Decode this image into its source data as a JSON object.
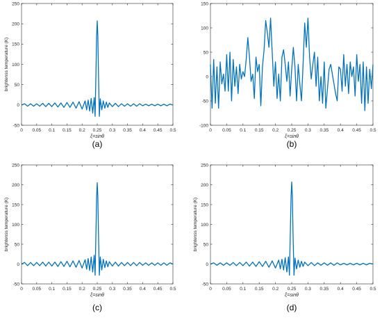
{
  "chart_data": [
    {
      "id": "a",
      "type": "line",
      "caption": "(a)",
      "xlabel": "ξ=sinθ",
      "ylabel": "brightenss temperature (K)",
      "xlim": [
        0,
        0.5
      ],
      "ylim": [
        -50,
        250
      ],
      "xticks": [
        0,
        0.05,
        0.1,
        0.15,
        0.2,
        0.25,
        0.3,
        0.35,
        0.4,
        0.45,
        0.5
      ],
      "xtick_labels": [
        "0",
        "0.05",
        "0.1",
        "0.15",
        "0.2",
        "0.25",
        "0.3",
        "0.35",
        "0.4",
        "0.45",
        "0.5"
      ],
      "yticks": [
        -50,
        0,
        50,
        100,
        150,
        200,
        250
      ],
      "ytick_labels": [
        "-50",
        "0",
        "50",
        "100",
        "150",
        "200",
        "250"
      ],
      "series": [
        {
          "color": "#0072BD",
          "x": [
            0,
            0.01,
            0.02,
            0.03,
            0.04,
            0.05,
            0.06,
            0.07,
            0.08,
            0.09,
            0.1,
            0.11,
            0.12,
            0.13,
            0.14,
            0.15,
            0.16,
            0.17,
            0.18,
            0.19,
            0.2,
            0.21,
            0.215,
            0.22,
            0.225,
            0.23,
            0.235,
            0.24,
            0.243,
            0.246,
            0.248,
            0.25,
            0.252,
            0.254,
            0.257,
            0.26,
            0.265,
            0.27,
            0.275,
            0.28,
            0.285,
            0.29,
            0.3,
            0.31,
            0.32,
            0.33,
            0.34,
            0.35,
            0.36,
            0.37,
            0.38,
            0.39,
            0.4,
            0.41,
            0.42,
            0.43,
            0.44,
            0.45,
            0.46,
            0.47,
            0.48,
            0.49,
            0.5
          ],
          "y": [
            0,
            3,
            -3,
            3,
            -3,
            3,
            -3,
            4,
            -4,
            4,
            -4,
            5,
            -5,
            5,
            -6,
            6,
            -6,
            7,
            -8,
            8,
            -10,
            10,
            -12,
            12,
            -15,
            16,
            -20,
            18,
            -28,
            90,
            170,
            207,
            170,
            80,
            -28,
            15,
            -12,
            10,
            -8,
            7,
            -6,
            5,
            -4,
            4,
            -4,
            3,
            -3,
            3,
            -3,
            3,
            -3,
            3,
            -2,
            2,
            -2,
            2,
            -2,
            2,
            -2,
            2,
            -2,
            2,
            0
          ]
        }
      ]
    },
    {
      "id": "b",
      "type": "line",
      "caption": "(b)",
      "xlabel": "ξ=sinθ",
      "ylabel": "",
      "xlim": [
        0,
        0.5
      ],
      "ylim": [
        -100,
        150
      ],
      "xticks": [
        0,
        0.05,
        0.1,
        0.15,
        0.2,
        0.25,
        0.3,
        0.35,
        0.4,
        0.45,
        0.5
      ],
      "xtick_labels": [
        "0",
        "0.05",
        "0.1",
        "0.15",
        "0.2",
        "0.25",
        "0.3",
        "0.35",
        "0.4",
        "0.45",
        "0.5"
      ],
      "yticks": [
        -100,
        -50,
        0,
        50,
        100,
        150
      ],
      "ytick_labels": [
        "-100",
        "-50",
        "0",
        "50",
        "100",
        "150"
      ],
      "series": [
        {
          "color": "#0072BD",
          "x": [
            0,
            0.005,
            0.01,
            0.015,
            0.02,
            0.025,
            0.03,
            0.035,
            0.04,
            0.045,
            0.05,
            0.055,
            0.06,
            0.065,
            0.07,
            0.075,
            0.08,
            0.085,
            0.09,
            0.095,
            0.1,
            0.105,
            0.11,
            0.115,
            0.12,
            0.125,
            0.13,
            0.135,
            0.14,
            0.145,
            0.15,
            0.155,
            0.16,
            0.165,
            0.17,
            0.175,
            0.18,
            0.185,
            0.19,
            0.195,
            0.2,
            0.205,
            0.21,
            0.215,
            0.22,
            0.225,
            0.23,
            0.235,
            0.24,
            0.245,
            0.25,
            0.255,
            0.26,
            0.265,
            0.27,
            0.275,
            0.28,
            0.285,
            0.29,
            0.295,
            0.3,
            0.305,
            0.31,
            0.315,
            0.32,
            0.325,
            0.33,
            0.335,
            0.34,
            0.345,
            0.35,
            0.355,
            0.36,
            0.365,
            0.37,
            0.375,
            0.38,
            0.385,
            0.39,
            0.395,
            0.4,
            0.405,
            0.41,
            0.415,
            0.42,
            0.425,
            0.43,
            0.435,
            0.44,
            0.445,
            0.45,
            0.455,
            0.46,
            0.465,
            0.47,
            0.475,
            0.48,
            0.485,
            0.49,
            0.495,
            0.5
          ],
          "y": [
            25,
            -65,
            35,
            -55,
            20,
            -65,
            30,
            -15,
            5,
            -30,
            45,
            -30,
            50,
            -50,
            35,
            -20,
            20,
            -35,
            25,
            -5,
            10,
            0,
            35,
            80,
            40,
            -10,
            5,
            -45,
            40,
            10,
            25,
            -60,
            20,
            55,
            115,
            90,
            60,
            120,
            50,
            -20,
            30,
            -45,
            5,
            -50,
            40,
            55,
            25,
            -10,
            30,
            -40,
            15,
            60,
            20,
            -50,
            25,
            -15,
            -50,
            25,
            110,
            60,
            120,
            40,
            -5,
            25,
            50,
            -20,
            40,
            -50,
            0,
            -55,
            30,
            -65,
            -25,
            15,
            25,
            5,
            -15,
            -35,
            -50,
            20,
            15,
            -30,
            45,
            -20,
            25,
            -35,
            30,
            0,
            20,
            -40,
            45,
            -10,
            25,
            -55,
            30,
            -70,
            20,
            -55,
            15,
            -25,
            25
          ]
        }
      ]
    },
    {
      "id": "c",
      "type": "line",
      "caption": "(c)",
      "xlabel": "ξ=sinθ",
      "ylabel": "brightenss temperature (K)",
      "xlim": [
        0,
        0.5
      ],
      "ylim": [
        -50,
        250
      ],
      "xticks": [
        0,
        0.05,
        0.1,
        0.15,
        0.2,
        0.25,
        0.3,
        0.35,
        0.4,
        0.45,
        0.5
      ],
      "xtick_labels": [
        "0",
        "0.05",
        "0.1",
        "0.15",
        "0.2",
        "0.25",
        "0.3",
        "0.35",
        "0.4",
        "0.45",
        "0.5"
      ],
      "yticks": [
        -50,
        0,
        50,
        100,
        150,
        200,
        250
      ],
      "ytick_labels": [
        "-50",
        "0",
        "50",
        "100",
        "150",
        "200",
        "250"
      ],
      "series": [
        {
          "color": "#0072BD",
          "x": [
            0,
            0.01,
            0.02,
            0.03,
            0.04,
            0.05,
            0.06,
            0.07,
            0.08,
            0.09,
            0.1,
            0.11,
            0.12,
            0.13,
            0.14,
            0.15,
            0.16,
            0.17,
            0.18,
            0.19,
            0.2,
            0.21,
            0.215,
            0.22,
            0.225,
            0.23,
            0.235,
            0.24,
            0.243,
            0.246,
            0.248,
            0.25,
            0.252,
            0.254,
            0.257,
            0.26,
            0.265,
            0.27,
            0.275,
            0.28,
            0.285,
            0.29,
            0.3,
            0.31,
            0.32,
            0.33,
            0.34,
            0.35,
            0.36,
            0.37,
            0.38,
            0.39,
            0.4,
            0.41,
            0.42,
            0.43,
            0.44,
            0.45,
            0.46,
            0.47,
            0.48,
            0.49,
            0.5
          ],
          "y": [
            0,
            4,
            -4,
            4,
            -4,
            4,
            -4,
            5,
            -5,
            5,
            -5,
            5,
            -6,
            6,
            -6,
            7,
            -7,
            8,
            -8,
            9,
            -10,
            11,
            -13,
            14,
            -16,
            18,
            -20,
            22,
            -28,
            90,
            170,
            205,
            170,
            80,
            -28,
            18,
            -15,
            12,
            -9,
            8,
            -7,
            6,
            -5,
            5,
            -5,
            4,
            -4,
            4,
            -4,
            4,
            -4,
            4,
            -3,
            3,
            -3,
            3,
            -3,
            3,
            -3,
            3,
            -3,
            3,
            0
          ]
        }
      ]
    },
    {
      "id": "d",
      "type": "line",
      "caption": "(d)",
      "xlabel": "ξ=sinθ",
      "ylabel": "brightenss temperature (K)",
      "xlim": [
        0,
        0.5
      ],
      "ylim": [
        -50,
        250
      ],
      "xticks": [
        0,
        0.05,
        0.1,
        0.15,
        0.2,
        0.25,
        0.3,
        0.35,
        0.4,
        0.45,
        0.5
      ],
      "xtick_labels": [
        "0",
        "0.05",
        "0.1",
        "0.15",
        "0.2",
        "0.25",
        "0.3",
        "0.35",
        "0.4",
        "0.45",
        "0.5"
      ],
      "yticks": [
        -50,
        0,
        50,
        100,
        150,
        200,
        250
      ],
      "ytick_labels": [
        "-50",
        "0",
        "50",
        "100",
        "150",
        "200",
        "250"
      ],
      "series": [
        {
          "color": "#0072BD",
          "x": [
            0,
            0.01,
            0.02,
            0.03,
            0.04,
            0.05,
            0.06,
            0.07,
            0.08,
            0.09,
            0.1,
            0.11,
            0.12,
            0.13,
            0.14,
            0.15,
            0.16,
            0.17,
            0.18,
            0.19,
            0.2,
            0.21,
            0.215,
            0.22,
            0.225,
            0.23,
            0.235,
            0.24,
            0.243,
            0.246,
            0.248,
            0.25,
            0.252,
            0.254,
            0.257,
            0.26,
            0.265,
            0.27,
            0.275,
            0.28,
            0.285,
            0.29,
            0.3,
            0.31,
            0.32,
            0.33,
            0.34,
            0.35,
            0.36,
            0.37,
            0.38,
            0.39,
            0.4,
            0.41,
            0.42,
            0.43,
            0.44,
            0.45,
            0.46,
            0.47,
            0.48,
            0.49,
            0.5
          ],
          "y": [
            0,
            3,
            -3,
            3,
            -3,
            3,
            -3,
            4,
            -4,
            4,
            -4,
            5,
            -5,
            5,
            -6,
            6,
            -6,
            7,
            -8,
            8,
            -10,
            10,
            -12,
            12,
            -15,
            16,
            -20,
            18,
            -28,
            90,
            170,
            207,
            170,
            80,
            -28,
            15,
            -12,
            10,
            -8,
            7,
            -6,
            5,
            -4,
            4,
            -4,
            3,
            -3,
            3,
            -3,
            3,
            -3,
            3,
            -2,
            2,
            -2,
            2,
            -2,
            2,
            -2,
            2,
            -2,
            2,
            0
          ]
        }
      ]
    }
  ]
}
